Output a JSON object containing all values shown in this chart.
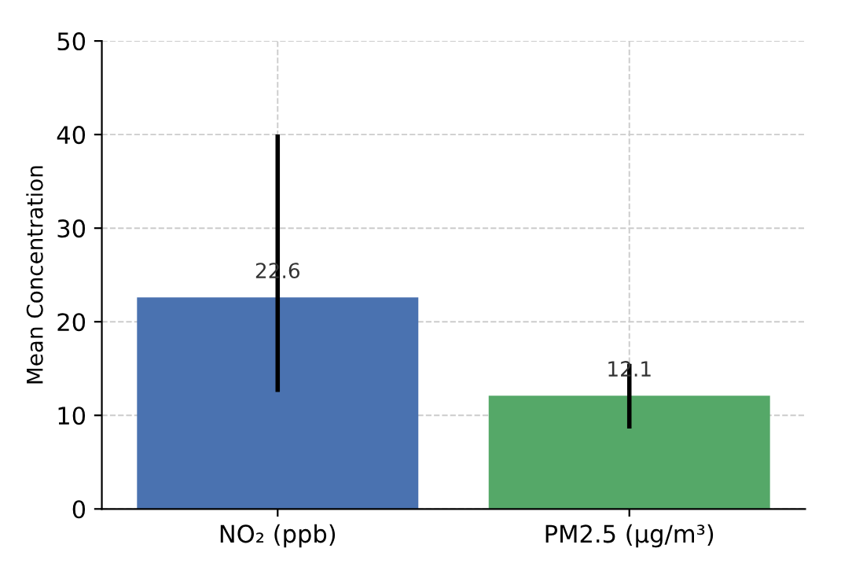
{
  "chart_data": {
    "type": "bar",
    "ylabel": "Mean Concentration",
    "categories": [
      "NO₂ (ppb)",
      "PM2.5 (µg/m³)"
    ],
    "values": [
      22.6,
      12.1
    ],
    "colors": [
      "#4a72b0",
      "#55a868"
    ],
    "errors": [
      [
        12.5,
        40
      ],
      [
        8.6,
        15.5
      ]
    ],
    "data_labels": true,
    "ylim": [
      0,
      50
    ],
    "yticks": [
      0,
      10,
      20,
      30,
      40,
      50
    ],
    "grid": true
  }
}
